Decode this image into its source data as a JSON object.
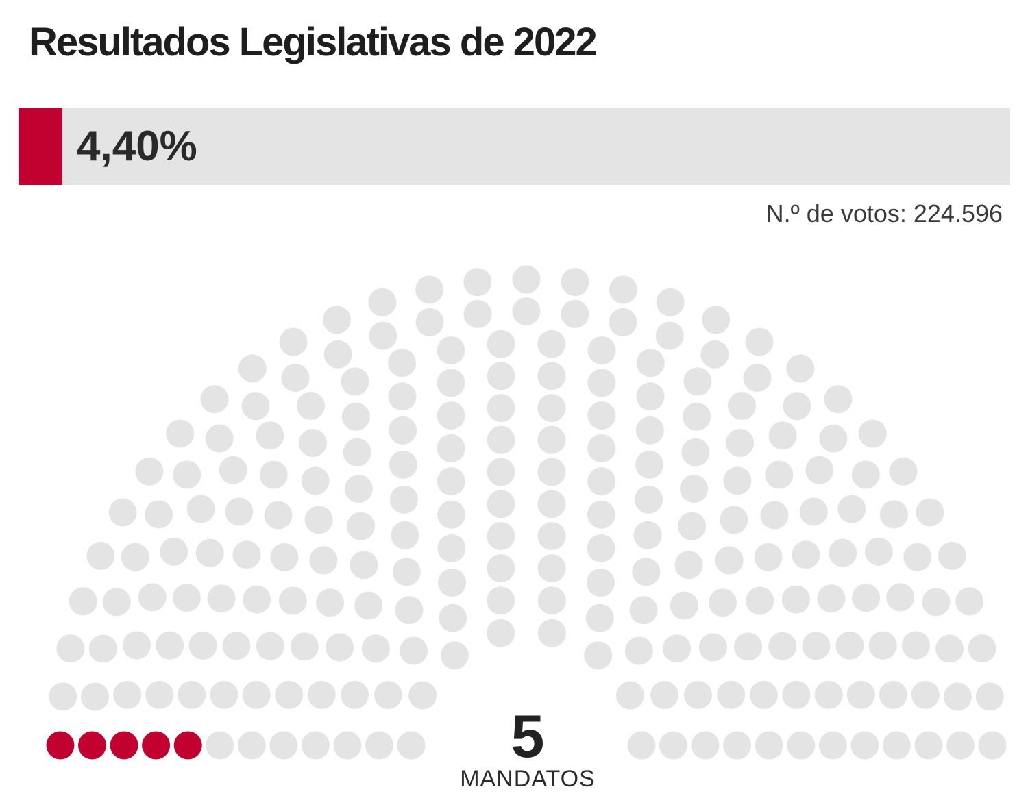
{
  "title": "Resultados Legislativas de 2022",
  "result": {
    "percentage_label": "4,40%",
    "percentage_value": 4.4,
    "votes_label": "N.º de votos: 224.596"
  },
  "seats": {
    "count": "5",
    "label": "MANDATOS"
  },
  "colors": {
    "party": "#c10230",
    "empty": "#e4e4e4"
  },
  "chart_data": {
    "type": "parliament",
    "total_seats": 230,
    "series": [
      {
        "name": "",
        "seats": 5,
        "percentage": 4.4,
        "votes": 224596
      }
    ]
  }
}
